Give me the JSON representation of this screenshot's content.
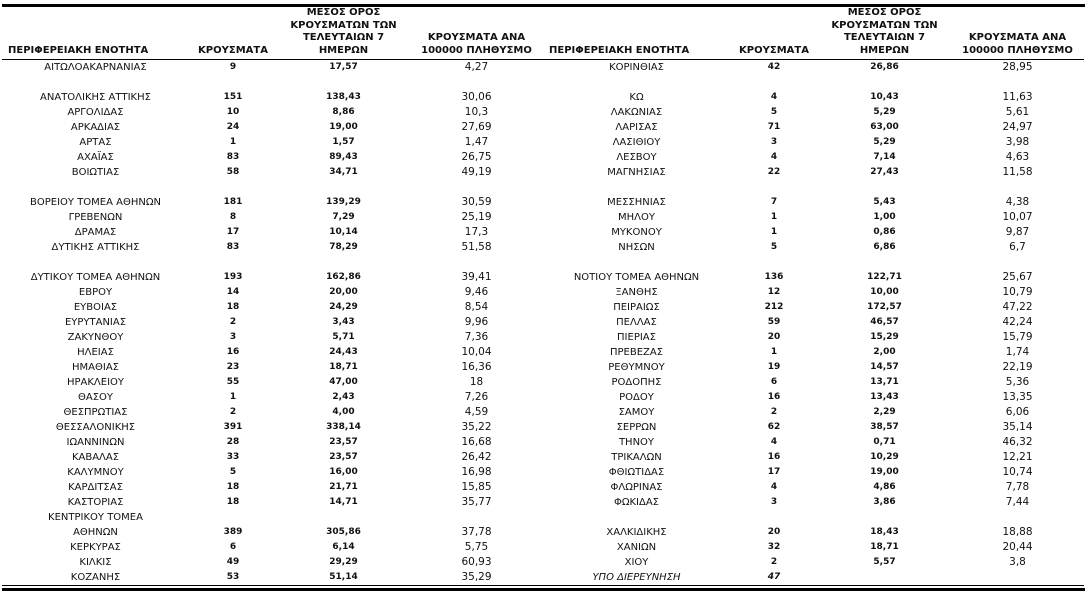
{
  "table": {
    "headers": [
      "ΠΕΡΙΦΕΡΕΙΑΚΗ ΕΝΟΤΗΤΑ",
      "ΚΡΟΥΣΜΑΤΑ",
      "ΜΕΣΟΣ ΟΡΟΣ\nΚΡΟΥΣΜΑΤΩΝ ΤΩΝ\nΤΕΛΕΥΤΑΙΩΝ 7 ΗΜΕΡΩΝ",
      "ΚΡΟΥΣΜΑΤΑ ΑΝΑ\n100000 ΠΛΗΘΥΣΜΟ"
    ],
    "left_rows": [
      [
        "ΑΙΤΩΛΟΑΚΑΡΝΑΝΙΑΣ",
        "9",
        "17,57",
        "4,27"
      ],
      [
        "",
        "",
        "",
        ""
      ],
      [
        "ΑΝΑΤΟΛΙΚΗΣ ΑΤΤΙΚΗΣ",
        "151",
        "138,43",
        "30,06"
      ],
      [
        "ΑΡΓΟΛΙΔΑΣ",
        "10",
        "8,86",
        "10,3"
      ],
      [
        "ΑΡΚΑΔΙΑΣ",
        "24",
        "19,00",
        "27,69"
      ],
      [
        "ΑΡΤΑΣ",
        "1",
        "1,57",
        "1,47"
      ],
      [
        "ΑΧΑΪΑΣ",
        "83",
        "89,43",
        "26,75"
      ],
      [
        "ΒΟΙΩΤΙΑΣ",
        "58",
        "34,71",
        "49,19"
      ],
      [
        "",
        "",
        "",
        ""
      ],
      [
        "ΒΟΡΕΙΟΥ ΤΟΜΕΑ ΑΘΗΝΩΝ",
        "181",
        "139,29",
        "30,59"
      ],
      [
        "ΓΡΕΒΕΝΩΝ",
        "8",
        "7,29",
        "25,19"
      ],
      [
        "ΔΡΑΜΑΣ",
        "17",
        "10,14",
        "17,3"
      ],
      [
        "ΔΥΤΙΚΗΣ ΑΤΤΙΚΗΣ",
        "83",
        "78,29",
        "51,58"
      ],
      [
        "",
        "",
        "",
        ""
      ],
      [
        "ΔΥΤΙΚΟΥ ΤΟΜΕΑ ΑΘΗΝΩΝ",
        "193",
        "162,86",
        "39,41"
      ],
      [
        "ΕΒΡΟΥ",
        "14",
        "20,00",
        "9,46"
      ],
      [
        "ΕΥΒΟΙΑΣ",
        "18",
        "24,29",
        "8,54"
      ],
      [
        "ΕΥΡΥΤΑΝΙΑΣ",
        "2",
        "3,43",
        "9,96"
      ],
      [
        "ΖΑΚΥΝΘΟΥ",
        "3",
        "5,71",
        "7,36"
      ],
      [
        "ΗΛΕΙΑΣ",
        "16",
        "24,43",
        "10,04"
      ],
      [
        "ΗΜΑΘΙΑΣ",
        "23",
        "18,71",
        "16,36"
      ],
      [
        "ΗΡΑΚΛΕΙΟΥ",
        "55",
        "47,00",
        "18"
      ],
      [
        "ΘΑΣΟΥ",
        "1",
        "2,43",
        "7,26"
      ],
      [
        "ΘΕΣΠΡΩΤΙΑΣ",
        "2",
        "4,00",
        "4,59"
      ],
      [
        "ΘΕΣΣΑΛΟΝΙΚΗΣ",
        "391",
        "338,14",
        "35,22"
      ],
      [
        "ΙΩΑΝΝΙΝΩΝ",
        "28",
        "23,57",
        "16,68"
      ],
      [
        "ΚΑΒΑΛΑΣ",
        "33",
        "23,57",
        "26,42"
      ],
      [
        "ΚΑΛΥΜΝΟΥ",
        "5",
        "16,00",
        "16,98"
      ],
      [
        "ΚΑΡΔΙΤΣΑΣ",
        "18",
        "21,71",
        "15,85"
      ],
      [
        "ΚΑΣΤΟΡΙΑΣ",
        "18",
        "14,71",
        "35,77"
      ],
      [
        "ΚΕΝΤΡΙΚΟΥ ΤΟΜΕΑ",
        "",
        "",
        ""
      ],
      [
        "ΑΘΗΝΩΝ",
        "389",
        "305,86",
        "37,78"
      ],
      [
        "ΚΕΡΚΥΡΑΣ",
        "6",
        "6,14",
        "5,75"
      ],
      [
        "ΚΙΛΚΙΣ",
        "49",
        "29,29",
        "60,93"
      ],
      [
        "ΚΟΖΑΝΗΣ",
        "53",
        "51,14",
        "35,29"
      ]
    ],
    "right_rows": [
      [
        "ΚΟΡΙΝΘΙΑΣ",
        "42",
        "26,86",
        "28,95"
      ],
      [
        "",
        "",
        "",
        ""
      ],
      [
        "ΚΩ",
        "4",
        "10,43",
        "11,63"
      ],
      [
        "ΛΑΚΩΝΙΑΣ",
        "5",
        "5,29",
        "5,61"
      ],
      [
        "ΛΑΡΙΣΑΣ",
        "71",
        "63,00",
        "24,97"
      ],
      [
        "ΛΑΣΙΘΙΟΥ",
        "3",
        "5,29",
        "3,98"
      ],
      [
        "ΛΕΣΒΟΥ",
        "4",
        "7,14",
        "4,63"
      ],
      [
        "ΜΑΓΝΗΣΙΑΣ",
        "22",
        "27,43",
        "11,58"
      ],
      [
        "",
        "",
        "",
        ""
      ],
      [
        "ΜΕΣΣΗΝΙΑΣ",
        "7",
        "5,43",
        "4,38"
      ],
      [
        "ΜΗΛΟΥ",
        "1",
        "1,00",
        "10,07"
      ],
      [
        "ΜΥΚΟΝΟΥ",
        "1",
        "0,86",
        "9,87"
      ],
      [
        "ΝΗΣΩΝ",
        "5",
        "6,86",
        "6,7"
      ],
      [
        "",
        "",
        "",
        ""
      ],
      [
        "ΝΟΤΙΟΥ ΤΟΜΕΑ ΑΘΗΝΩΝ",
        "136",
        "122,71",
        "25,67"
      ],
      [
        "ΞΑΝΘΗΣ",
        "12",
        "10,00",
        "10,79"
      ],
      [
        "ΠΕΙΡΑΙΩΣ",
        "212",
        "172,57",
        "47,22"
      ],
      [
        "ΠΕΛΛΑΣ",
        "59",
        "46,57",
        "42,24"
      ],
      [
        "ΠΙΕΡΙΑΣ",
        "20",
        "15,29",
        "15,79"
      ],
      [
        "ΠΡΕΒΕΖΑΣ",
        "1",
        "2,00",
        "1,74"
      ],
      [
        "ΡΕΘΥΜΝΟΥ",
        "19",
        "14,57",
        "22,19"
      ],
      [
        "ΡΟΔΟΠΗΣ",
        "6",
        "13,71",
        "5,36"
      ],
      [
        "ΡΟΔΟΥ",
        "16",
        "13,43",
        "13,35"
      ],
      [
        "ΣΑΜΟΥ",
        "2",
        "2,29",
        "6,06"
      ],
      [
        "ΣΕΡΡΩΝ",
        "62",
        "38,57",
        "35,14"
      ],
      [
        "ΤΗΝΟΥ",
        "4",
        "0,71",
        "46,32"
      ],
      [
        "ΤΡΙΚΑΛΩΝ",
        "16",
        "10,29",
        "12,21"
      ],
      [
        "ΦΘΙΩΤΙΔΑΣ",
        "17",
        "19,00",
        "10,74"
      ],
      [
        "ΦΛΩΡΙΝΑΣ",
        "4",
        "4,86",
        "7,78"
      ],
      [
        "ΦΩΚΙΔΑΣ",
        "3",
        "3,86",
        "7,44"
      ],
      [
        "",
        "",
        "",
        ""
      ],
      [
        "ΧΑΛΚΙΔΙΚΗΣ",
        "20",
        "18,43",
        "18,88"
      ],
      [
        "ΧΑΝΙΩΝ",
        "32",
        "18,71",
        "20,44"
      ],
      [
        "ΧΙΟΥ",
        "2",
        "5,57",
        "3,8"
      ],
      [
        "ΥΠΟ ΔΙΕΡΕΥΝΗΣΗ",
        "47",
        "",
        "",
        "italic"
      ]
    ]
  },
  "colors": {
    "text": "#111111",
    "rule": "#000000",
    "background": "#ffffff"
  }
}
